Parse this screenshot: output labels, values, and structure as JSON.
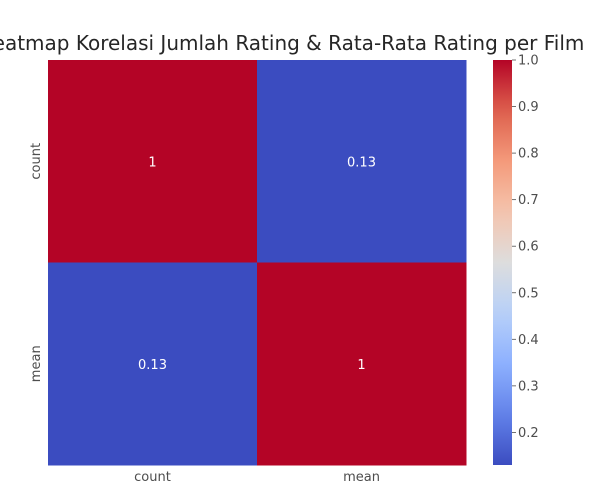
{
  "chart_data": {
    "type": "heatmap",
    "title": "Heatmap Korelasi Jumlah Rating & Rata-Rata Rating per Film",
    "x_categories": [
      "count",
      "mean"
    ],
    "y_categories": [
      "count",
      "mean"
    ],
    "values": [
      [
        1,
        0.13
      ],
      [
        0.13,
        1
      ]
    ],
    "annotations": [
      [
        "1",
        "0.13"
      ],
      [
        "0.13",
        "1"
      ]
    ],
    "colormap": "coolwarm",
    "colors": {
      "low": "#3b4cc0",
      "high": "#b40426"
    },
    "colorbar": {
      "vmin": 0.13,
      "vmax": 1.0,
      "ticks": [
        "0.2",
        "0.3",
        "0.4",
        "0.5",
        "0.6",
        "0.7",
        "0.8",
        "0.9",
        "1.0"
      ]
    },
    "xlabel": "",
    "ylabel": ""
  }
}
